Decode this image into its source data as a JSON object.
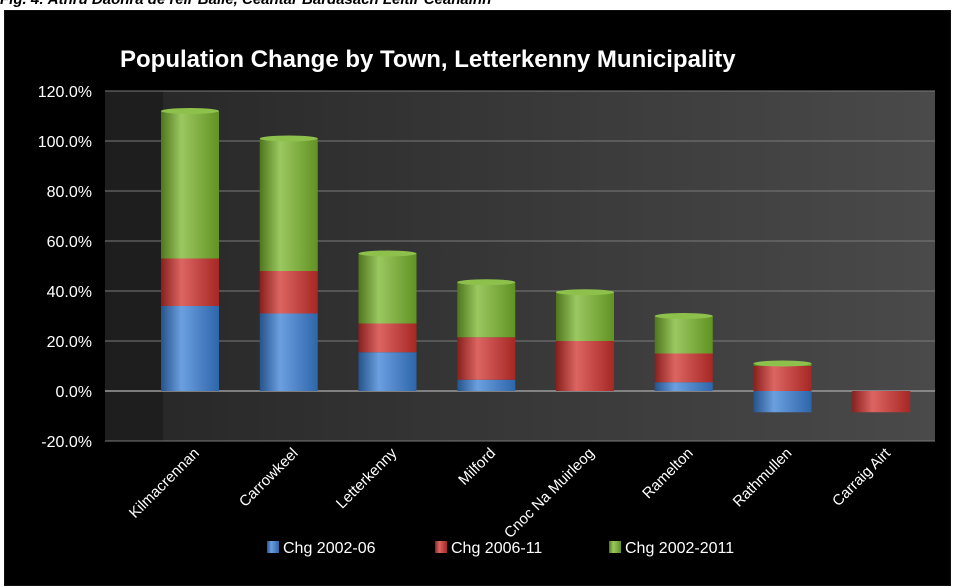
{
  "page": {
    "caption": "Fig. 4: Athrú Daonra de réir Baile, Ceantar Bardasach Leitir Ceanainn"
  },
  "chart_data": {
    "type": "bar",
    "stacked": true,
    "title": "Population Change by Town, Letterkenny Municipality",
    "xlabel": "",
    "ylabel": "",
    "ylim": [
      -20,
      120
    ],
    "yticks": [
      "120.0%",
      "100.0%",
      "80.0%",
      "60.0%",
      "40.0%",
      "20.0%",
      "0.0%",
      "-20.0%"
    ],
    "ytick_values": [
      120,
      100,
      80,
      60,
      40,
      20,
      0,
      -20
    ],
    "grid": true,
    "legend_position": "bottom",
    "categories": [
      "Kilmacrennan",
      "Carrowkeel",
      "Letterkenny",
      "Milford",
      "Cnoc Na Muirleog",
      "Ramelton",
      "Rathmullen",
      "Carraig Airt"
    ],
    "series": [
      {
        "name": "Chg 2002-06",
        "color": "#3a7fd5",
        "values": [
          34,
          31,
          15.5,
          4.5,
          0,
          3.5,
          -8.5,
          0
        ]
      },
      {
        "name": "Chg 2006-11",
        "color": "#d0312d",
        "values": [
          19,
          17,
          11.5,
          17,
          20,
          11.5,
          10,
          -8.5
        ]
      },
      {
        "name": "Chg 2002-2011",
        "color": "#79b62c",
        "values": [
          59,
          53,
          28,
          22,
          19.5,
          15,
          1,
          0
        ]
      }
    ]
  }
}
